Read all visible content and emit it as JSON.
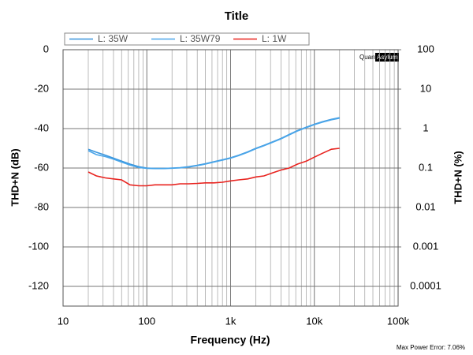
{
  "chart_data": {
    "type": "line",
    "title": "Title",
    "x_label": "Frequency (Hz)",
    "y_label": "THD+N (dB)",
    "y2_label": "THD+N (%)",
    "watermark": [
      "Quant",
      "Asylum"
    ],
    "footer": "Max Power Error: 7.06%",
    "x": [
      20,
      25,
      32,
      40,
      50,
      63,
      80,
      100,
      125,
      160,
      200,
      250,
      315,
      400,
      500,
      630,
      800,
      1000,
      1250,
      1600,
      2000,
      2500,
      3150,
      4000,
      5000,
      6300,
      8000,
      10000,
      12500,
      16000,
      20000
    ],
    "xlog": true,
    "xlim": [
      10,
      100000
    ],
    "xticks": [
      10,
      100,
      {
        "value": 1000,
        "label": "1k"
      },
      {
        "value": 10000,
        "label": "10k"
      },
      {
        "value": 100000,
        "label": "100k"
      }
    ],
    "ylim": [
      -130,
      0
    ],
    "yticks": [
      0,
      -20,
      -40,
      -60,
      -80,
      -100,
      -120
    ],
    "y2log": true,
    "y2lim": [
      3.16e-05,
      100
    ],
    "y2ticks": [
      100,
      10,
      1,
      0.1,
      0.01,
      0.001,
      0.0001
    ],
    "grid": true,
    "minor_grid": true,
    "legend": "top",
    "series": [
      {
        "name": "L: 35W",
        "color": "#3a95dc",
        "values": [
          -50.5,
          -52,
          -53.5,
          -55,
          -56.5,
          -58,
          -59.3,
          -60,
          -60.2,
          -60.2,
          -60,
          -59.8,
          -59.3,
          -58.6,
          -57.8,
          -56.8,
          -55.8,
          -54.8,
          -53.5,
          -51.8,
          -50,
          -48.5,
          -46.8,
          -45,
          -43,
          -41,
          -39.3,
          -37.8,
          -36.5,
          -35.3,
          -34.5
        ]
      },
      {
        "name": "L: 35W79",
        "color": "#4aa6ea",
        "values": [
          -51.2,
          -53.2,
          -54.2,
          -55.5,
          -57,
          -58.5,
          -59.7,
          -60.2,
          -60.3,
          -60.3,
          -60.1,
          -59.9,
          -59.5,
          -58.8,
          -58,
          -57,
          -56,
          -55,
          -53.7,
          -52,
          -50.2,
          -48.7,
          -47,
          -45.2,
          -43.2,
          -41.2,
          -39.5,
          -38,
          -36.7,
          -35.5,
          -34.7
        ]
      },
      {
        "name": "L: 1W",
        "color": "#e8231f",
        "values": [
          -62,
          -64,
          -65,
          -65.5,
          -66,
          -68.5,
          -69,
          -69,
          -68.5,
          -68.5,
          -68.5,
          -68,
          -68,
          -67.8,
          -67.5,
          -67.5,
          -67.2,
          -66.5,
          -66,
          -65.5,
          -64.5,
          -64,
          -62.5,
          -61,
          -60,
          -58,
          -56.5,
          -54.5,
          -52.5,
          -50.5,
          -50
        ]
      }
    ]
  }
}
